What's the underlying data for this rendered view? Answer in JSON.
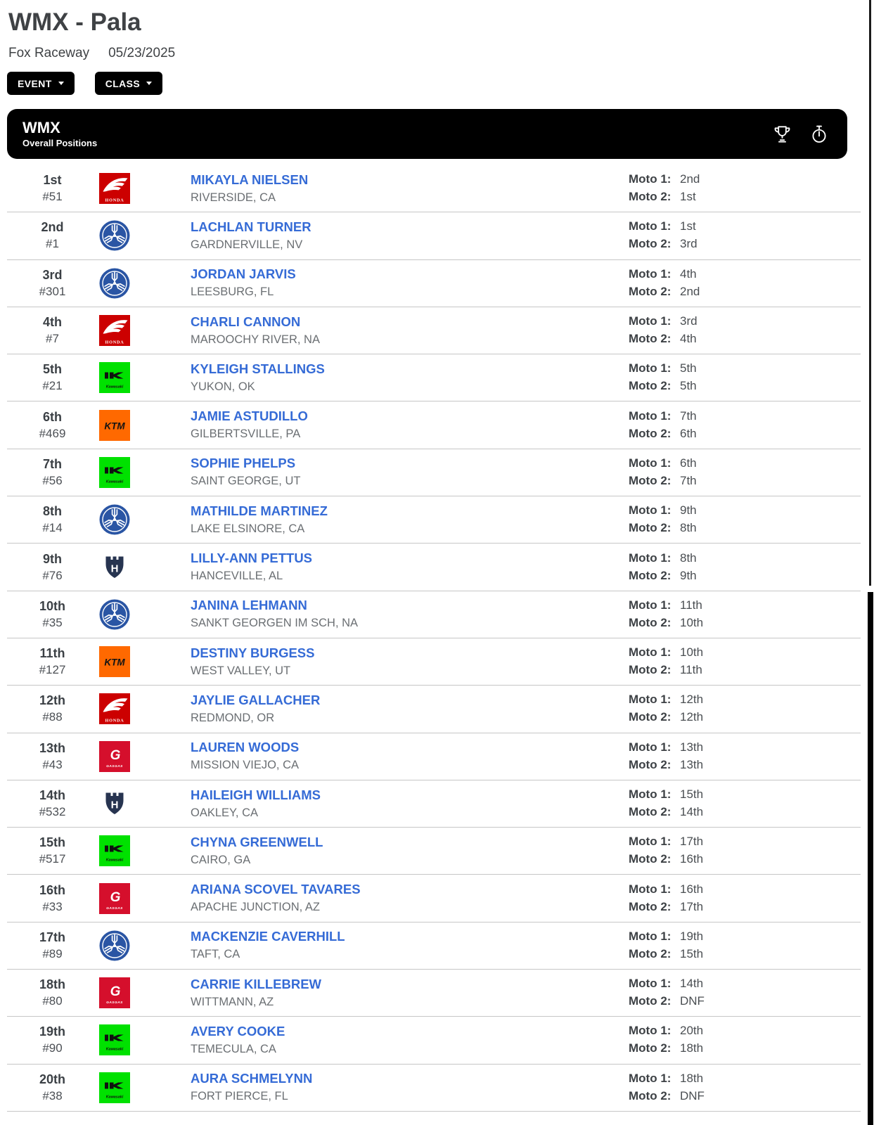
{
  "page": {
    "title": "WMX - Pala",
    "venue": "Fox Raceway",
    "date": "05/23/2025"
  },
  "toolbar": {
    "event_button": "EVENT",
    "class_button": "CLASS"
  },
  "panel": {
    "class_name": "WMX",
    "subtitle": "Overall Positions",
    "icons": {
      "left": "trophy-icon",
      "right": "stopwatch-icon"
    }
  },
  "labels": {
    "moto1": "Moto 1:",
    "moto2": "Moto 2:"
  },
  "brand_colors": {
    "honda": {
      "bg": "#cc0000",
      "fg": "#ffffff"
    },
    "yamaha": {
      "bg": "#2a55a4",
      "fg": "#ffffff"
    },
    "kawasaki": {
      "bg": "#00e100",
      "fg": "#101010"
    },
    "ktm": {
      "bg": "#ff6900",
      "fg": "#131313"
    },
    "husqvarna": {
      "bg": "#ffffff",
      "fg": "#273450"
    },
    "gasgas": {
      "bg": "#d50f2c",
      "fg": "#ffffff"
    }
  },
  "accent_colors": {
    "rider_link": "#356bd6",
    "header_bar": "#000000",
    "divider": "#c6c6c6"
  },
  "results": [
    {
      "position": "1st",
      "number": "#51",
      "brand": "honda",
      "name": "MIKAYLA NIELSEN",
      "location": "RIVERSIDE, CA",
      "moto1": "2nd",
      "moto2": "1st"
    },
    {
      "position": "2nd",
      "number": "#1",
      "brand": "yamaha",
      "name": "LACHLAN TURNER",
      "location": "GARDNERVILLE, NV",
      "moto1": "1st",
      "moto2": "3rd"
    },
    {
      "position": "3rd",
      "number": "#301",
      "brand": "yamaha",
      "name": "JORDAN JARVIS",
      "location": "LEESBURG, FL",
      "moto1": "4th",
      "moto2": "2nd"
    },
    {
      "position": "4th",
      "number": "#7",
      "brand": "honda",
      "name": "CHARLI CANNON",
      "location": "MAROOCHY RIVER, NA",
      "moto1": "3rd",
      "moto2": "4th"
    },
    {
      "position": "5th",
      "number": "#21",
      "brand": "kawasaki",
      "name": "KYLEIGH STALLINGS",
      "location": "YUKON, OK",
      "moto1": "5th",
      "moto2": "5th"
    },
    {
      "position": "6th",
      "number": "#469",
      "brand": "ktm",
      "name": "JAMIE ASTUDILLO",
      "location": "GILBERTSVILLE, PA",
      "moto1": "7th",
      "moto2": "6th"
    },
    {
      "position": "7th",
      "number": "#56",
      "brand": "kawasaki",
      "name": "SOPHIE PHELPS",
      "location": "SAINT GEORGE, UT",
      "moto1": "6th",
      "moto2": "7th"
    },
    {
      "position": "8th",
      "number": "#14",
      "brand": "yamaha",
      "name": "MATHILDE MARTINEZ",
      "location": "LAKE ELSINORE, CA",
      "moto1": "9th",
      "moto2": "8th"
    },
    {
      "position": "9th",
      "number": "#76",
      "brand": "husqvarna",
      "name": "LILLY-ANN PETTUS",
      "location": "HANCEVILLE, AL",
      "moto1": "8th",
      "moto2": "9th"
    },
    {
      "position": "10th",
      "number": "#35",
      "brand": "yamaha",
      "name": "JANINA LEHMANN",
      "location": "SANKT GEORGEN IM SCH, NA",
      "moto1": "11th",
      "moto2": "10th"
    },
    {
      "position": "11th",
      "number": "#127",
      "brand": "ktm",
      "name": "DESTINY BURGESS",
      "location": "WEST VALLEY, UT",
      "moto1": "10th",
      "moto2": "11th"
    },
    {
      "position": "12th",
      "number": "#88",
      "brand": "honda",
      "name": "JAYLIE GALLACHER",
      "location": "REDMOND, OR",
      "moto1": "12th",
      "moto2": "12th"
    },
    {
      "position": "13th",
      "number": "#43",
      "brand": "gasgas",
      "name": "LAUREN WOODS",
      "location": "MISSION VIEJO, CA",
      "moto1": "13th",
      "moto2": "13th"
    },
    {
      "position": "14th",
      "number": "#532",
      "brand": "husqvarna",
      "name": "HAILEIGH WILLIAMS",
      "location": "OAKLEY, CA",
      "moto1": "15th",
      "moto2": "14th"
    },
    {
      "position": "15th",
      "number": "#517",
      "brand": "kawasaki",
      "name": "CHYNA GREENWELL",
      "location": "CAIRO, GA",
      "moto1": "17th",
      "moto2": "16th"
    },
    {
      "position": "16th",
      "number": "#33",
      "brand": "gasgas",
      "name": "ARIANA SCOVEL TAVARES",
      "location": "APACHE JUNCTION, AZ",
      "moto1": "16th",
      "moto2": "17th"
    },
    {
      "position": "17th",
      "number": "#89",
      "brand": "yamaha",
      "name": "MACKENZIE CAVERHILL",
      "location": "TAFT, CA",
      "moto1": "19th",
      "moto2": "15th"
    },
    {
      "position": "18th",
      "number": "#80",
      "brand": "gasgas",
      "name": "CARRIE KILLEBREW",
      "location": "WITTMANN, AZ",
      "moto1": "14th",
      "moto2": "DNF"
    },
    {
      "position": "19th",
      "number": "#90",
      "brand": "kawasaki",
      "name": "AVERY COOKE",
      "location": "TEMECULA, CA",
      "moto1": "20th",
      "moto2": "18th"
    },
    {
      "position": "20th",
      "number": "#38",
      "brand": "kawasaki",
      "name": "AURA SCHMELYNN",
      "location": "FORT PIERCE, FL",
      "moto1": "18th",
      "moto2": "DNF"
    }
  ]
}
